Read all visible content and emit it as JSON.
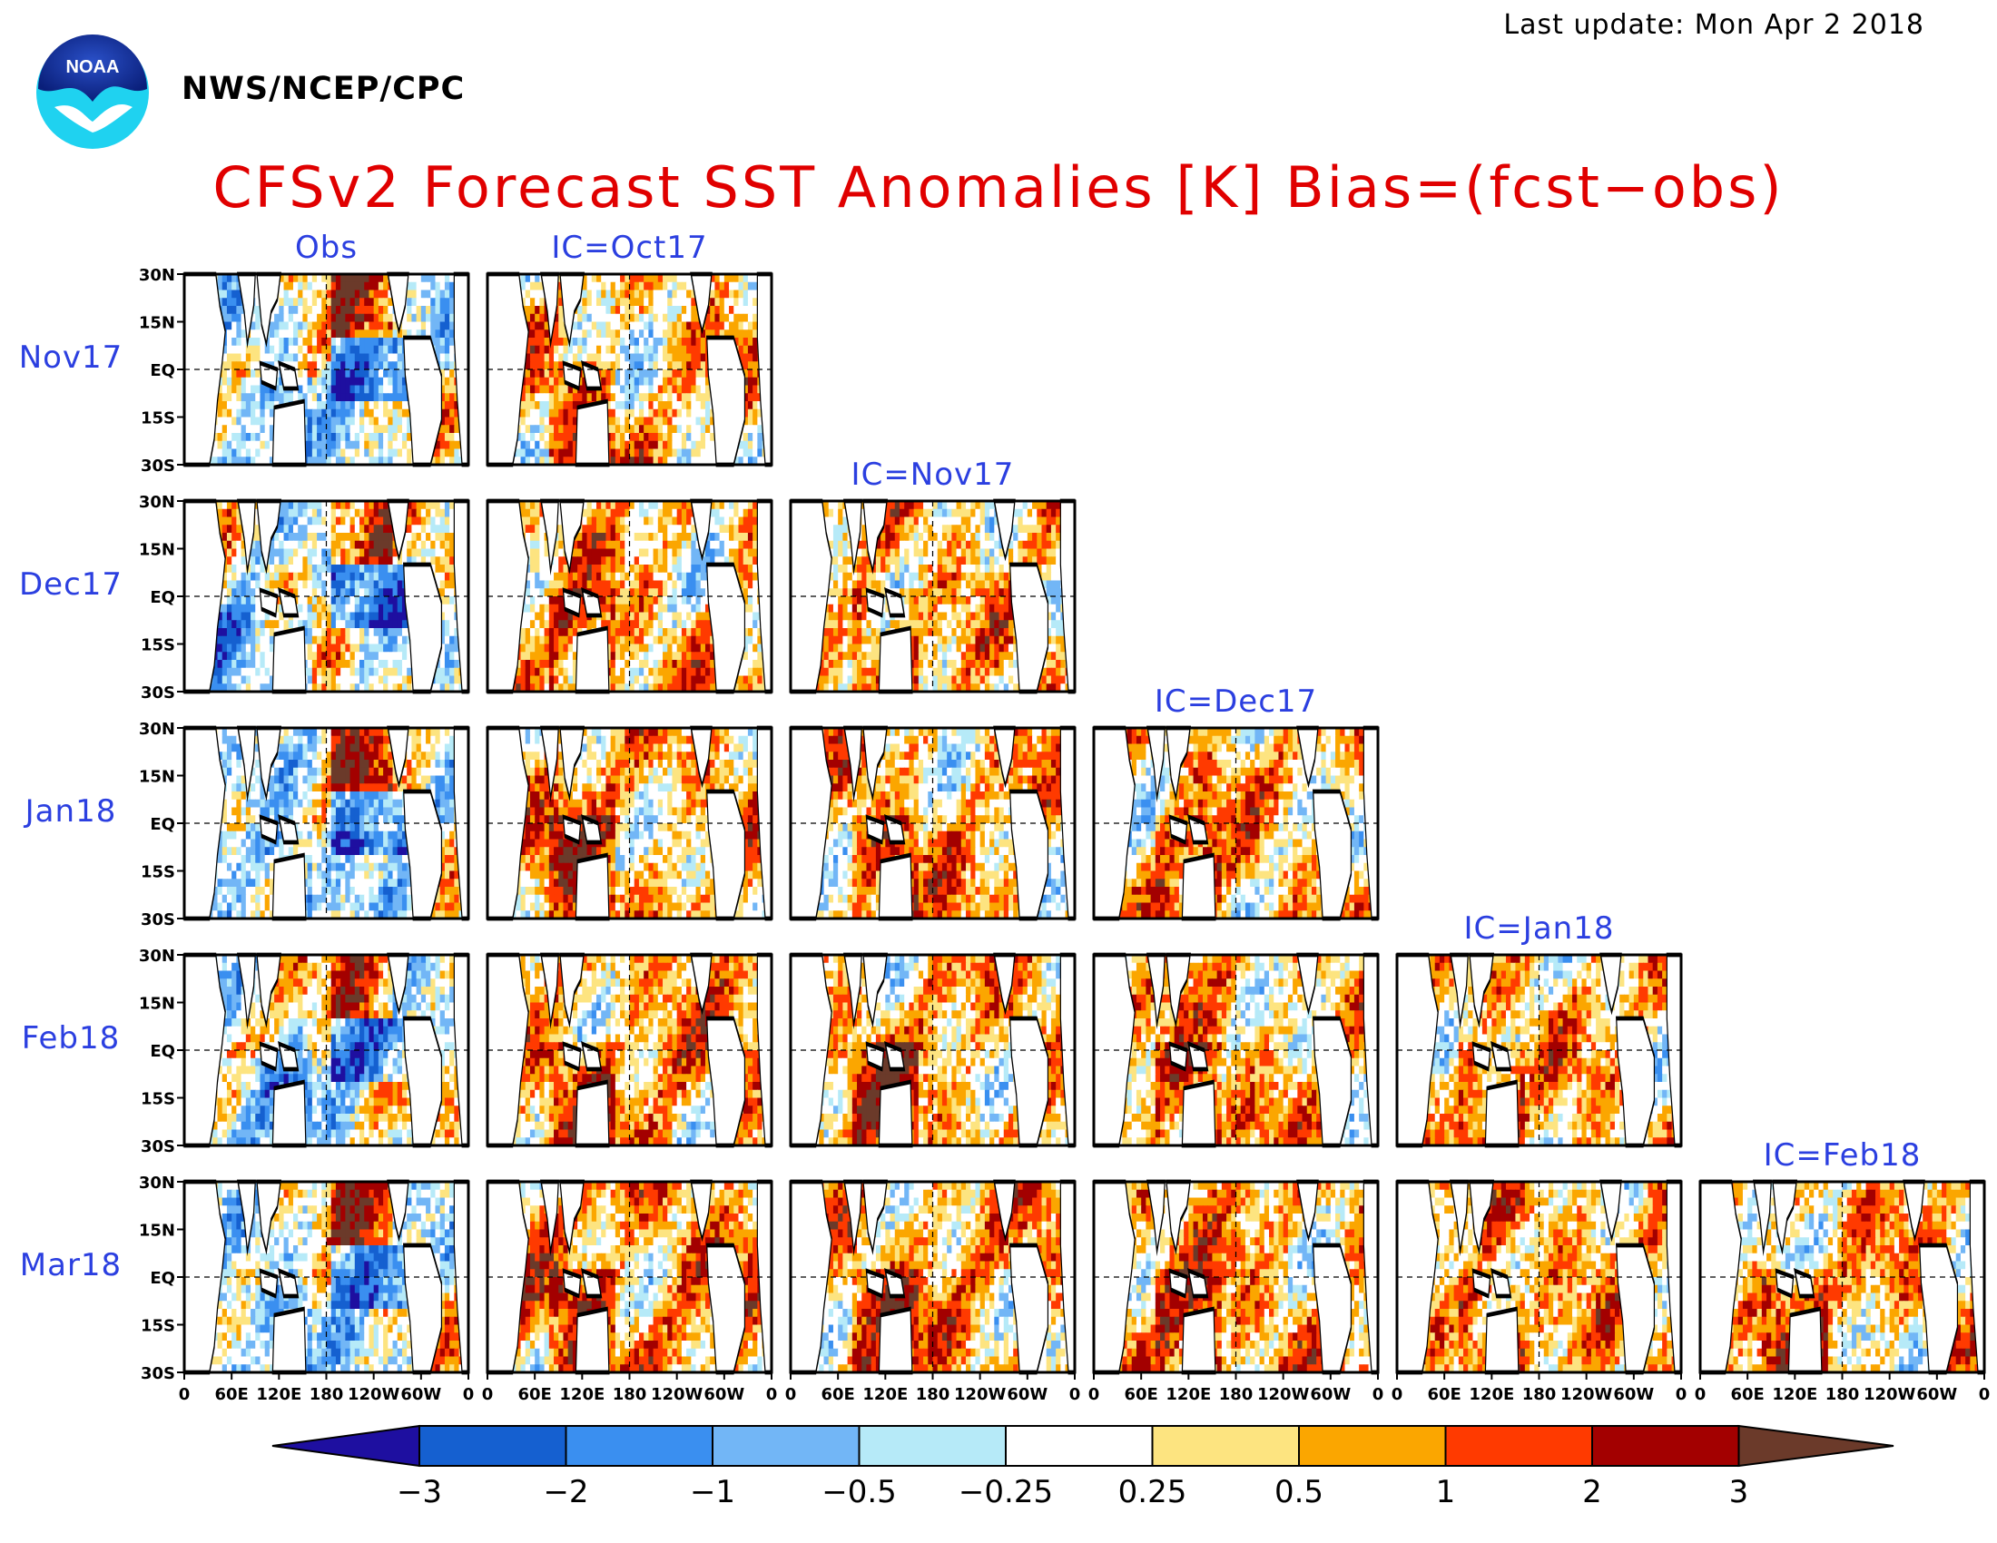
{
  "header": {
    "last_update": "Last update: Mon Apr 2 2018",
    "agency": "NWS/NCEP/CPC",
    "logo_text": "NOAA"
  },
  "colors": {
    "title": "#e00000",
    "labels": "#2b3fe0",
    "land": "#ffffff",
    "coast": "#000000"
  },
  "chart_data": {
    "type": "heatmap",
    "title": "CFSv2 Forecast SST Anomalies [K] Bias=(fcst−obs)",
    "columns": [
      "Obs",
      "IC=Oct17",
      "IC=Nov17",
      "IC=Dec17",
      "IC=Jan18",
      "IC=Feb18"
    ],
    "rows": [
      "Nov17",
      "Dec17",
      "Jan18",
      "Feb18",
      "Mar18"
    ],
    "valid_panels": [
      {
        "row": "Nov17",
        "cols": [
          "Obs",
          "IC=Oct17"
        ]
      },
      {
        "row": "Dec17",
        "cols": [
          "Obs",
          "IC=Oct17",
          "IC=Nov17"
        ]
      },
      {
        "row": "Jan18",
        "cols": [
          "Obs",
          "IC=Oct17",
          "IC=Nov17",
          "IC=Dec17"
        ]
      },
      {
        "row": "Feb18",
        "cols": [
          "Obs",
          "IC=Oct17",
          "IC=Nov17",
          "IC=Dec17",
          "IC=Jan18"
        ]
      },
      {
        "row": "Mar18",
        "cols": [
          "Obs",
          "IC=Oct17",
          "IC=Nov17",
          "IC=Dec17",
          "IC=Jan18",
          "IC=Feb18"
        ]
      }
    ],
    "y_ticks": [
      "30N",
      "15N",
      "EQ",
      "15S",
      "30S"
    ],
    "x_ticks": [
      "0",
      "60E",
      "120E",
      "180",
      "120W",
      "60W",
      "0"
    ],
    "colorbar": {
      "levels": [
        "−3",
        "−2",
        "−1",
        "−0.5",
        "−0.25",
        "0.25",
        "0.5",
        "1",
        "2",
        "3"
      ],
      "colors": [
        "#1e0fa0",
        "#1560d0",
        "#3a8ff0",
        "#72b6f6",
        "#b6eaf8",
        "#ffffff",
        "#fde480",
        "#fba600",
        "#ff3a00",
        "#a30000",
        "#6b3a2a"
      ]
    }
  }
}
